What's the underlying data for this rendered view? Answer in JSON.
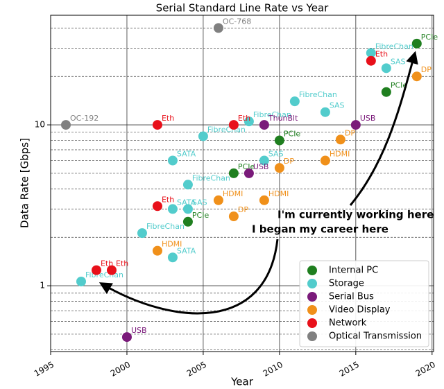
{
  "chart_data": {
    "type": "scatter",
    "title": "Serial Standard Line Rate vs Year",
    "xlabel": "Year",
    "ylabel": "Data Rate [Gbps]",
    "xlim": [
      1995,
      2020.1
    ],
    "xticks": [
      1995,
      2000,
      2005,
      2010,
      2015,
      2020
    ],
    "ylim": [
      0.39,
      48
    ],
    "log_y": true,
    "yticks": [
      1,
      10
    ],
    "yminor": [
      0.4,
      0.5,
      0.6,
      0.7,
      0.8,
      0.9,
      2,
      3,
      4,
      5,
      6,
      7,
      8,
      9,
      20,
      30,
      40
    ],
    "grid": true,
    "legend": "lower right",
    "series": [
      {
        "name": "Internal PC",
        "color": "#1f7f1f",
        "x": [
          2004,
          2007,
          2010,
          2017,
          2019
        ],
        "values": [
          2.5,
          5,
          8,
          16,
          32
        ],
        "labels": [
          "PCIe",
          "PCIe",
          "PCIe",
          "PCIe",
          "PCIe"
        ]
      },
      {
        "name": "Storage",
        "color": "#52cccc",
        "x": [
          1997,
          2001,
          2004,
          2005,
          2008,
          2011,
          2016,
          2003,
          2003,
          2003,
          2004,
          2009,
          2013,
          2017
        ],
        "values": [
          1.0625,
          2.125,
          4.25,
          8.5,
          10.5,
          14,
          28,
          1.5,
          3,
          6,
          3,
          6,
          12,
          22.5
        ],
        "labels": [
          "FibreChan",
          "FibreChan",
          "FibreChan",
          "FibreChan",
          "FibreChan",
          "FibreChan",
          "FibreChan",
          "SATA",
          "SATA",
          "SATA",
          "SAS",
          "SAS",
          "SAS",
          "SAS"
        ]
      },
      {
        "name": "Serial Bus",
        "color": "#7a1a7a",
        "x": [
          2000,
          2008,
          2009,
          2015
        ],
        "values": [
          0.48,
          5,
          10,
          10
        ],
        "labels": [
          "USB",
          "USB",
          "ThunBlt",
          "USB"
        ]
      },
      {
        "name": "Video Display",
        "color": "#f0901a",
        "x": [
          2002,
          2006,
          2007,
          2009,
          2010,
          2013,
          2014,
          2019
        ],
        "values": [
          1.65,
          3.4,
          2.7,
          3.4,
          5.4,
          6,
          8.1,
          20
        ],
        "labels": [
          "HDMI",
          "HDMI",
          "DP",
          "HDMI",
          "DP",
          "HDMI",
          "DP",
          "DP"
        ]
      },
      {
        "name": "Network",
        "color": "#e8101a",
        "x": [
          1998,
          1999,
          2002,
          2002,
          2007,
          2016
        ],
        "values": [
          1.25,
          1.25,
          10,
          3.125,
          10,
          25
        ],
        "labels": [
          "Eth",
          "Eth",
          "Eth",
          "Eth",
          "Eth",
          "Eth"
        ]
      },
      {
        "name": "Optical Transmission",
        "color": "#808080",
        "x": [
          1996,
          2006
        ],
        "values": [
          10,
          40
        ],
        "labels": [
          "OC-192",
          "OC-768"
        ]
      }
    ],
    "annotations": [
      "I'm currently working here",
      "I began my career here"
    ]
  }
}
